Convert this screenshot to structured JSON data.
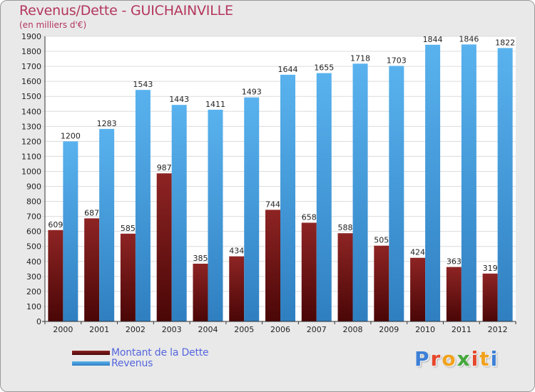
{
  "title": "Revenus/Dette - GUICHAINVILLE",
  "subtitle": "(en milliers d'€)",
  "colors": {
    "title": "#b3365e",
    "debt": "#8b1a1a",
    "revenue": "#3a9de0",
    "legend_text": "#5566dd"
  },
  "chart_data": {
    "type": "bar",
    "title": "Revenus/Dette - GUICHAINVILLE",
    "ylabel": "(en milliers d'€)",
    "xlabel": "",
    "ylim": [
      0,
      1900
    ],
    "ytick_step": 100,
    "grid": true,
    "categories": [
      "2000",
      "2001",
      "2002",
      "2003",
      "2004",
      "2005",
      "2006",
      "2007",
      "2008",
      "2009",
      "2010",
      "2011",
      "2012"
    ],
    "series": [
      {
        "name": "Montant de la Dette",
        "values": [
          609,
          687,
          585,
          987,
          385,
          434,
          744,
          658,
          588,
          505,
          424,
          363,
          319
        ]
      },
      {
        "name": "Revenus",
        "values": [
          1200,
          1283,
          1543,
          1443,
          1411,
          1493,
          1644,
          1655,
          1718,
          1703,
          1844,
          1846,
          1822
        ]
      }
    ],
    "legend": [
      "Montant de la Dette",
      "Revenus"
    ],
    "legend_position": "bottom-left"
  },
  "logo": {
    "text": "Proxiti",
    "letter_colors": [
      "#3c7fd6",
      "#e6462a",
      "#f1a21c",
      "#44a83a",
      "#e6462a",
      "#f1a21c",
      "#3c7fd6"
    ]
  }
}
